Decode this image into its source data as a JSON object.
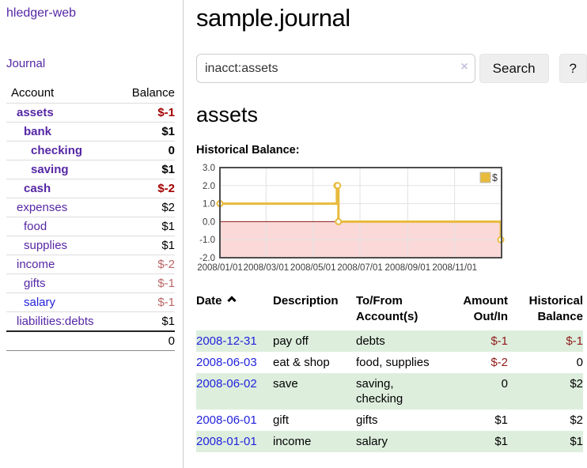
{
  "app_title": "hledger-web",
  "sidebar": {
    "journal_link": "Journal",
    "accounts_table": {
      "headers": {
        "account": "Account",
        "balance": "Balance"
      },
      "rows": [
        {
          "account": "assets",
          "balance": "$-1",
          "depth": 1,
          "bold": true,
          "balance_style": "negative-strong"
        },
        {
          "account": "bank",
          "balance": "$1",
          "depth": 2,
          "bold": true,
          "balance_style": "normal"
        },
        {
          "account": "checking",
          "balance": "0",
          "depth": 3,
          "bold": true,
          "balance_style": "normal"
        },
        {
          "account": "saving",
          "balance": "$1",
          "depth": 3,
          "bold": true,
          "balance_style": "normal"
        },
        {
          "account": "cash",
          "balance": "$-2",
          "depth": 2,
          "bold": true,
          "balance_style": "negative-strong"
        },
        {
          "account": "expenses",
          "balance": "$2",
          "depth": 1,
          "bold": false,
          "balance_style": "normal"
        },
        {
          "account": "food",
          "balance": "$1",
          "depth": 2,
          "bold": false,
          "balance_style": "normal"
        },
        {
          "account": "supplies",
          "balance": "$1",
          "depth": 2,
          "bold": false,
          "balance_style": "normal"
        },
        {
          "account": "income",
          "balance": "$-2",
          "depth": 1,
          "bold": false,
          "balance_style": "negative-muted"
        },
        {
          "account": "gifts",
          "balance": "$-1",
          "depth": 2,
          "bold": false,
          "balance_style": "negative-muted"
        },
        {
          "account": "salary",
          "balance": "$-1",
          "depth": 2,
          "bold": false,
          "balance_style": "negative-muted",
          "link_color": "blue"
        },
        {
          "account": "liabilities:debts",
          "balance": "$1",
          "depth": 1,
          "bold": false,
          "balance_style": "normal"
        }
      ],
      "total": "0"
    }
  },
  "main": {
    "title": "sample.journal",
    "search": {
      "value": "inacct:assets",
      "clear_label": "×",
      "search_button": "Search",
      "help_button": "?"
    },
    "account_heading": "assets"
  },
  "chart_data": {
    "type": "line",
    "step": true,
    "title": "Historical Balance:",
    "series": [
      {
        "name": "$",
        "color": "#e8bb3d",
        "points": [
          {
            "date": "2008-01-01",
            "value": 1
          },
          {
            "date": "2008-06-01",
            "value": 2
          },
          {
            "date": "2008-06-02",
            "value": 2
          },
          {
            "date": "2008-06-03",
            "value": 0
          },
          {
            "date": "2008-12-31",
            "value": -1
          }
        ]
      }
    ],
    "x_range": [
      "2008-01-01",
      "2009-01-01"
    ],
    "y_range": [
      -2,
      3
    ],
    "y_ticks": [
      "3.0",
      "2.0",
      "1.0",
      "0.0",
      "-1.0",
      "-2.0"
    ],
    "x_ticks": [
      "2008/01/01",
      "2008/03/01",
      "2008/05/01",
      "2008/07/01",
      "2008/09/01",
      "2008/11/01"
    ],
    "legend": {
      "label": "$",
      "position": "top-right"
    },
    "grid": true,
    "colors": {
      "negative_region": "#fbd9d9",
      "zero_line": "#911616",
      "grid": "#e2e2e2",
      "border": "#4d4d4d",
      "tick_text": "#3c3c3c"
    }
  },
  "register": {
    "headers": {
      "date": "Date",
      "sort_icon": "chevron-up",
      "description": "Description",
      "account": [
        "To/From",
        "Account(s)"
      ],
      "amount": [
        "Amount",
        "Out/In"
      ],
      "balance": [
        "Historical",
        "Balance"
      ]
    },
    "rows": [
      {
        "date": "2008-12-31",
        "description": "pay off",
        "accounts": "debts",
        "amount": "$-1",
        "balance": "$-1"
      },
      {
        "date": "2008-06-03",
        "description": "eat & shop",
        "accounts": "food, supplies",
        "amount": "$-2",
        "balance": "0"
      },
      {
        "date": "2008-06-02",
        "description": "save",
        "accounts": "saving, checking",
        "amount": "0",
        "balance": "$2"
      },
      {
        "date": "2008-06-01",
        "description": "gift",
        "accounts": "gifts",
        "amount": "$1",
        "balance": "$2"
      },
      {
        "date": "2008-01-01",
        "description": "income",
        "accounts": "salary",
        "amount": "$1",
        "balance": "$1"
      }
    ]
  }
}
